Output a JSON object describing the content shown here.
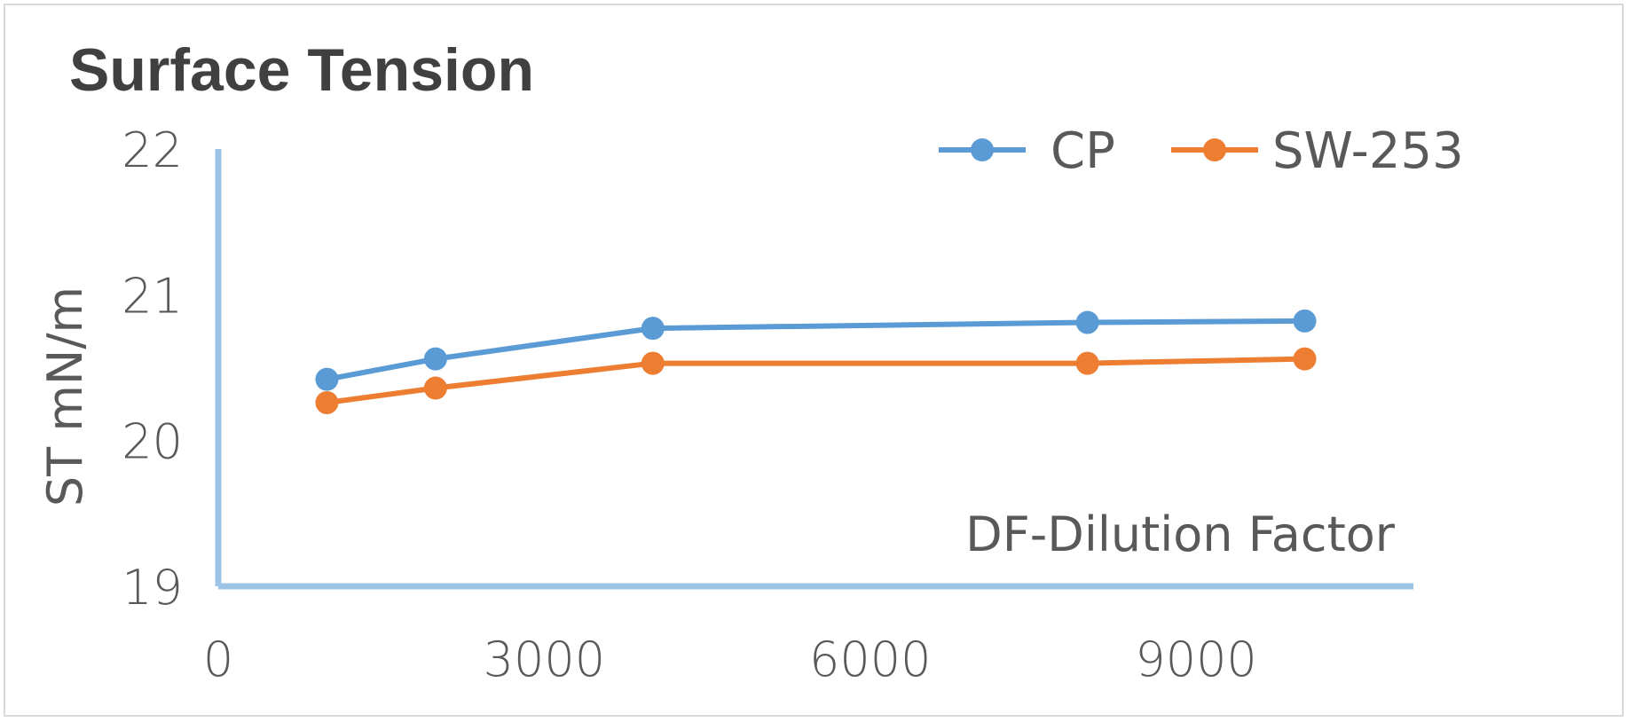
{
  "chart_data": {
    "type": "line",
    "title": "Surface Tension",
    "xlabel": "DF-Dilution Factor",
    "ylabel": "ST mN/m",
    "xlim": [
      0,
      11000
    ],
    "ylim": [
      19,
      22
    ],
    "x_ticks": [
      0,
      3000,
      6000,
      9000
    ],
    "x_tick_labels": [
      "0",
      "3000",
      "6000",
      "9000"
    ],
    "y_ticks": [
      19,
      20,
      21,
      22
    ],
    "y_tick_labels": [
      "19",
      "20",
      "21",
      "22"
    ],
    "grid": false,
    "legend_position": "top-right",
    "x": [
      1000,
      2000,
      4000,
      8000,
      10000
    ],
    "series": [
      {
        "name": "CP",
        "color": "#5b9bd5",
        "values": [
          20.42,
          20.56,
          20.77,
          20.81,
          20.82
        ]
      },
      {
        "name": "SW-253",
        "color": "#ed7d31",
        "values": [
          20.26,
          20.36,
          20.53,
          20.53,
          20.56
        ]
      }
    ],
    "axis_color": "#9dc3e6"
  }
}
